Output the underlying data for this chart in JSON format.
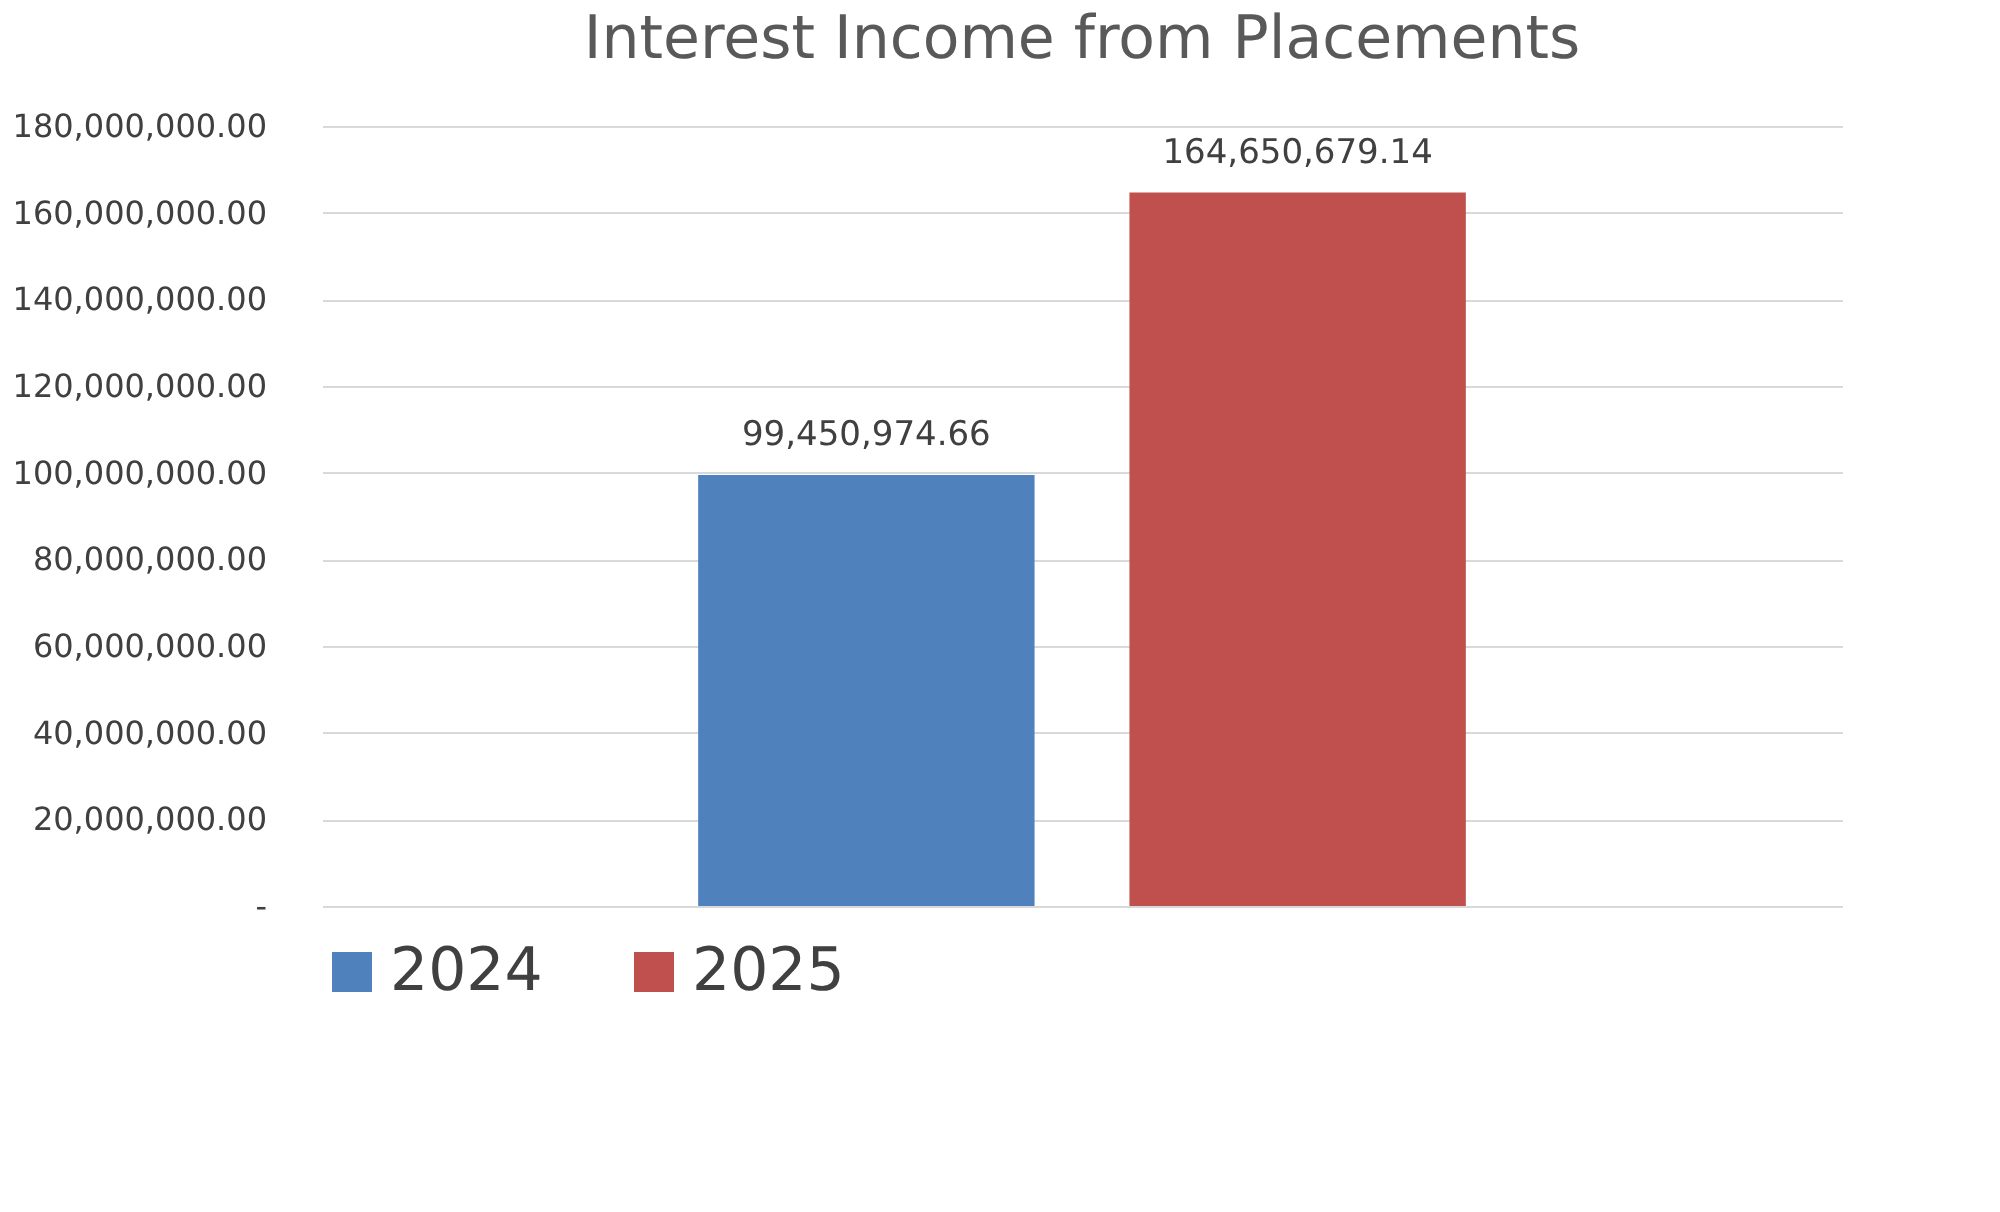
{
  "chart_data": {
    "type": "bar",
    "title": "Interest Income from Placements",
    "categories": [
      null
    ],
    "series": [
      {
        "name": "2024",
        "color": "#4f81bd",
        "values": [
          99450974.66
        ],
        "value_labels": [
          "99,450,974.66"
        ]
      },
      {
        "name": "2025",
        "color": "#c0504d",
        "values": [
          164650679.14
        ],
        "value_labels": [
          "164,650,679.14"
        ]
      }
    ],
    "ylim": [
      0,
      180000000
    ],
    "yticks": [
      {
        "value": 0,
        "label": "-"
      },
      {
        "value": 20000000,
        "label": "20,000,000.00"
      },
      {
        "value": 40000000,
        "label": "40,000,000.00"
      },
      {
        "value": 60000000,
        "label": "60,000,000.00"
      },
      {
        "value": 80000000,
        "label": "80,000,000.00"
      },
      {
        "value": 100000000,
        "label": "100,000,000.00"
      },
      {
        "value": 120000000,
        "label": "120,000,000.00"
      },
      {
        "value": 140000000,
        "label": "140,000,000.00"
      },
      {
        "value": 160000000,
        "label": "160,000,000.00"
      },
      {
        "value": 180000000,
        "label": "180,000,000.00"
      }
    ],
    "grid": "y",
    "legend": "bottom",
    "tick_labels": "y"
  }
}
